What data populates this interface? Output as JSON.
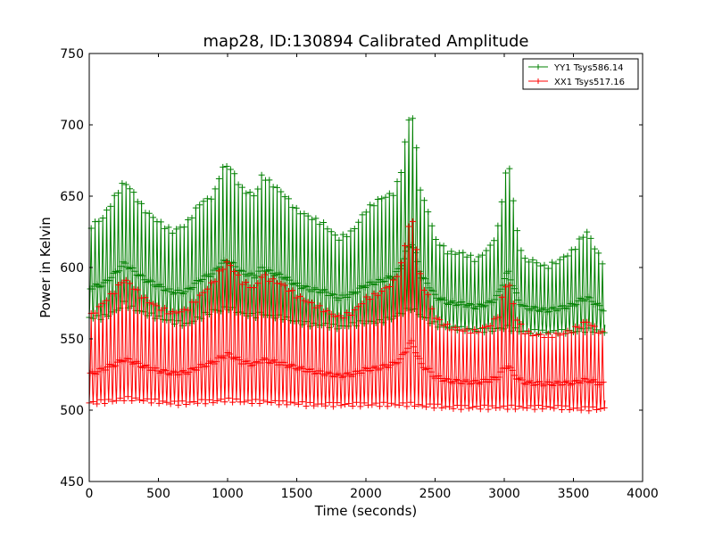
{
  "chart_data": {
    "type": "line",
    "title": "map28, ID:130894 Calibrated Amplitude",
    "xlabel": "Time (seconds)",
    "ylabel": "Power in Kelvin",
    "xlim": [
      0,
      4000
    ],
    "ylim": [
      450,
      750
    ],
    "xticks": [
      "0",
      "500",
      "1000",
      "1500",
      "2000",
      "2500",
      "3000",
      "3500",
      "4000"
    ],
    "yticks": [
      "450",
      "500",
      "550",
      "600",
      "650",
      "700",
      "750"
    ],
    "grid": false,
    "legend": "top-right",
    "series": [
      {
        "name": "YY1 Tsys586.14",
        "color": "#008000",
        "marker": "+",
        "envelope": {
          "x": [
            0,
            100,
            200,
            250,
            300,
            400,
            500,
            600,
            700,
            800,
            900,
            950,
            1000,
            1050,
            1100,
            1200,
            1250,
            1300,
            1400,
            1500,
            1600,
            1700,
            1800,
            1900,
            2000,
            2100,
            2200,
            2250,
            2300,
            2330,
            2350,
            2400,
            2450,
            2500,
            2600,
            2700,
            2800,
            2900,
            2950,
            3000,
            3030,
            3050,
            3100,
            3150,
            3200,
            3300,
            3400,
            3500,
            3550,
            3600,
            3650,
            3700,
            3730
          ],
          "high": [
            628,
            635,
            652,
            660,
            655,
            640,
            632,
            625,
            630,
            645,
            650,
            668,
            672,
            665,
            655,
            650,
            665,
            660,
            652,
            640,
            635,
            630,
            620,
            625,
            640,
            648,
            652,
            665,
            700,
            710,
            698,
            650,
            640,
            620,
            610,
            610,
            605,
            615,
            625,
            660,
            676,
            660,
            620,
            605,
            605,
            600,
            605,
            612,
            620,
            625,
            615,
            605,
            602
          ],
          "low": [
            565,
            565,
            570,
            575,
            572,
            568,
            565,
            562,
            560,
            565,
            570,
            570,
            572,
            570,
            568,
            566,
            568,
            566,
            565,
            562,
            560,
            560,
            558,
            560,
            562,
            562,
            565,
            568,
            570,
            572,
            570,
            566,
            563,
            560,
            558,
            557,
            556,
            556,
            557,
            558,
            558,
            557,
            556,
            555,
            555,
            555,
            555,
            555,
            556,
            556,
            556,
            555,
            555
          ]
        }
      },
      {
        "name": "XX1 Tsys517.16",
        "color": "#ff0000",
        "marker": "+",
        "envelope": {
          "x": [
            0,
            100,
            200,
            250,
            300,
            400,
            500,
            600,
            700,
            800,
            900,
            950,
            1000,
            1050,
            1100,
            1200,
            1250,
            1300,
            1400,
            1500,
            1600,
            1700,
            1800,
            1900,
            2000,
            2100,
            2200,
            2250,
            2300,
            2330,
            2350,
            2400,
            2450,
            2500,
            2600,
            2700,
            2800,
            2900,
            2950,
            3000,
            3030,
            3050,
            3100,
            3150,
            3200,
            3300,
            3400,
            3500,
            3550,
            3600,
            3650,
            3700,
            3730
          ],
          "high": [
            565,
            575,
            585,
            592,
            588,
            578,
            572,
            568,
            570,
            580,
            590,
            598,
            604,
            598,
            590,
            585,
            595,
            592,
            588,
            580,
            575,
            570,
            565,
            568,
            578,
            582,
            590,
            600,
            625,
            636,
            625,
            590,
            580,
            565,
            558,
            556,
            555,
            560,
            565,
            585,
            592,
            580,
            562,
            555,
            553,
            552,
            553,
            556,
            560,
            562,
            558,
            554,
            553
          ],
          "low": [
            505,
            506,
            507,
            508,
            508,
            507,
            506,
            505,
            505,
            506,
            506,
            507,
            507,
            507,
            506,
            506,
            506,
            506,
            505,
            505,
            504,
            504,
            504,
            504,
            504,
            504,
            504,
            504,
            504,
            504,
            504,
            503,
            503,
            503,
            502,
            502,
            502,
            502,
            502,
            502,
            502,
            502,
            502,
            502,
            502,
            502,
            502,
            501,
            501,
            501,
            501,
            501,
            501
          ]
        }
      }
    ]
  }
}
